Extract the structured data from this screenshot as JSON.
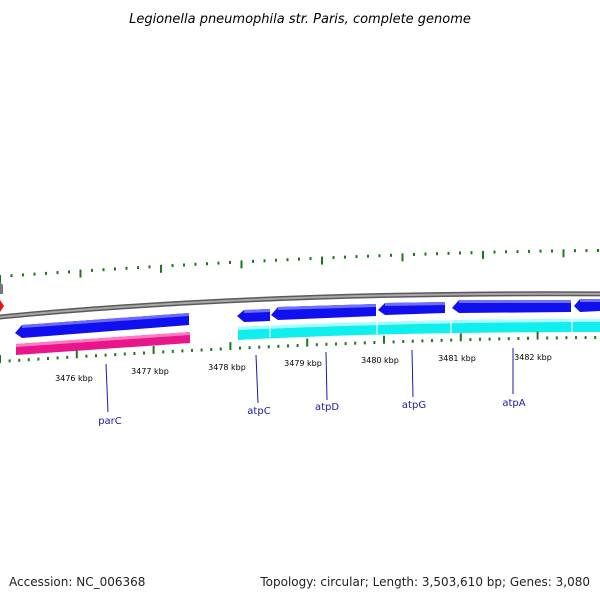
{
  "title": "Legionella pneumophila str. Paris, complete genome",
  "footer": {
    "accession": "Accession: NC_006368",
    "topology": "Topology: circular; Length: 3,503,610 bp; Genes: 3,080"
  },
  "ruler_labels": [
    "3476 kbp",
    "3477 kbp",
    "3478 kbp",
    "3479 kbp",
    "3480 kbp",
    "3481 kbp",
    "3482 kbp"
  ],
  "genes": [
    {
      "name": "parC",
      "strand": "reverse",
      "color": "#1010ee"
    },
    {
      "name": "atpC",
      "strand": "reverse",
      "color": "#1010ee"
    },
    {
      "name": "atpD",
      "strand": "reverse",
      "color": "#1010ee"
    },
    {
      "name": "atpG",
      "strand": "reverse",
      "color": "#1010ee"
    },
    {
      "name": "atpA",
      "strand": "reverse",
      "color": "#1010ee"
    }
  ],
  "colors": {
    "backbone": "#7a7a7a",
    "cds_reverse": "#1010ee",
    "cds_forward_magenta": "#e8168a",
    "cds_cyan": "#11eeee",
    "ticks": "#1a7a1a",
    "label_line": "#1a1aa6",
    "marker_red": "#ee1111"
  }
}
